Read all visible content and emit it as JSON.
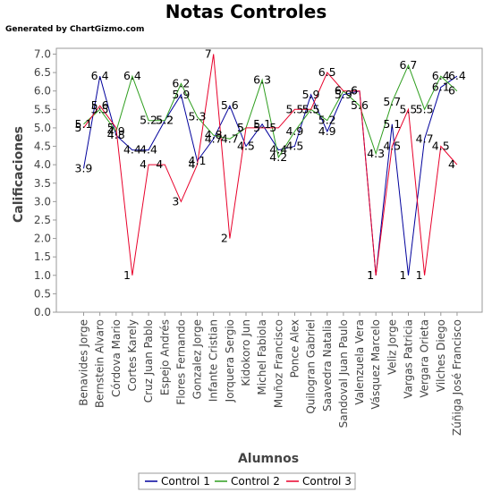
{
  "header": {
    "title": "Notas Controles",
    "credit": "Generated by ChartGizmo.com"
  },
  "chart_data": {
    "type": "line",
    "title": "Notas Controles",
    "xlabel": "Alumnos",
    "ylabel": "Calificaciones",
    "ylim": [
      0,
      7.0
    ],
    "yticks": [
      0.0,
      0.5,
      1.0,
      1.5,
      2.0,
      2.5,
      3.0,
      3.5,
      4.0,
      4.5,
      5.0,
      5.5,
      6.0,
      6.5,
      7.0
    ],
    "grid": false,
    "legend_position": "bottom",
    "categories": [
      "Benavides Jorge",
      "Bernstein Alvaro",
      "Córdova Mario",
      "Cortes Karely",
      "Cruz Juan Pablo",
      "Espejo Andrés",
      "Flores Fernando",
      "Gonzalez Jorge",
      "Infante Cristian",
      "Jorquera Sergio",
      "Kidokoro Jun",
      "Michel Fabiola",
      "Muñoz Francisco",
      "Ponce Alex",
      "Quilogran Gabriel",
      "Saavedra Natalia",
      "Sandoval Juan Paulo",
      "Valenzuela Vera",
      "Vásquez Marcelo",
      "Veliz Jorge",
      "Vargas Patricia",
      "Vergara Orieta",
      "Vilches Diego",
      "Zúñiga José Francisco"
    ],
    "series": [
      {
        "name": "Control 1",
        "color": "#00009c",
        "values": [
          3.9,
          6.4,
          4.8,
          4.4,
          4.4,
          5.2,
          5.9,
          4.1,
          4.7,
          5.6,
          4.5,
          5.1,
          4.4,
          4.5,
          5.9,
          4.9,
          5.9,
          6.0,
          1,
          5.1,
          1,
          4.7,
          6.1,
          6.4
        ]
      },
      {
        "name": "Control 2",
        "color": "#2e9e1e",
        "values": [
          5.1,
          5.5,
          4.9,
          6.4,
          5.2,
          5.2,
          6.2,
          5.3,
          4.8,
          4.7,
          5.0,
          6.3,
          4.2,
          4.9,
          5.5,
          5.2,
          6.0,
          5.6,
          4.3,
          5.7,
          6.7,
          5.5,
          6.4,
          6.0
        ]
      },
      {
        "name": "Control 3",
        "color": "#e8002a",
        "values": [
          5.0,
          5.6,
          5.0,
          1,
          4.0,
          4.0,
          3.0,
          4.0,
          7.0,
          2.0,
          5.0,
          5.0,
          5.0,
          5.5,
          5.5,
          6.5,
          6.0,
          6.0,
          1,
          4.5,
          5.5,
          1,
          4.5,
          4.0
        ]
      }
    ]
  }
}
